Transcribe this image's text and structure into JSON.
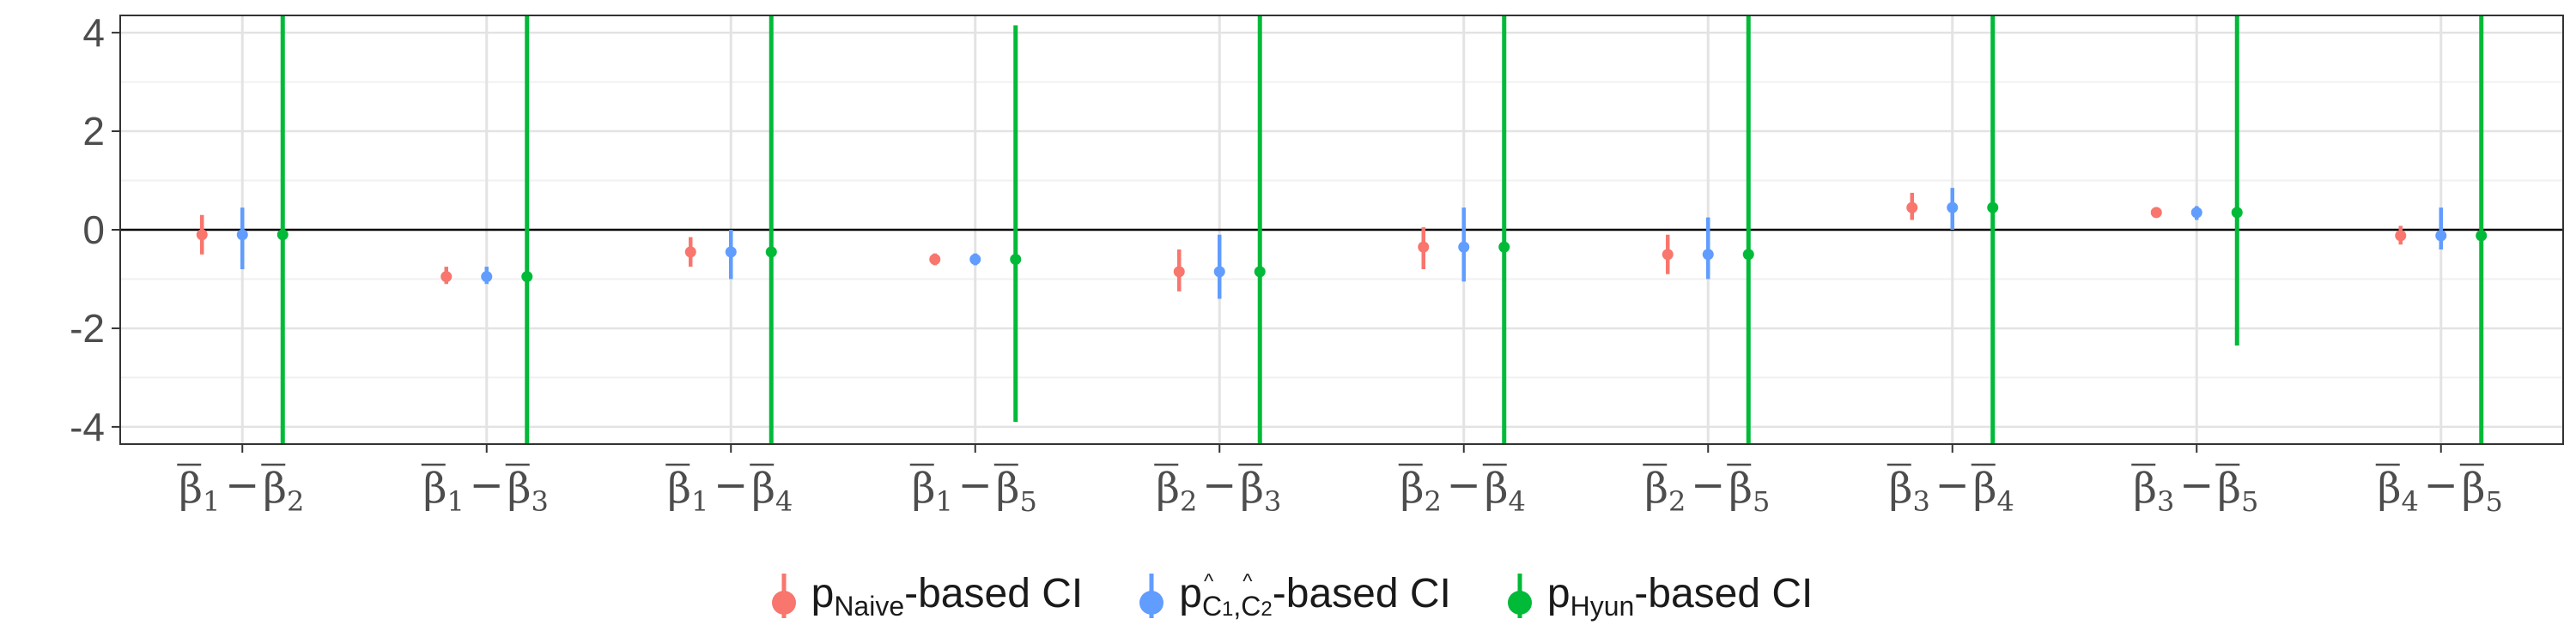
{
  "chart_data": {
    "type": "errorbar",
    "y_ticks": [
      "-4",
      "-2",
      "0",
      "2",
      "4"
    ],
    "ylim": [
      -4.35,
      4.35
    ],
    "hline": 0,
    "grid": true,
    "legend_position": "bottom",
    "categories": [
      {
        "base1": "β",
        "sub1": "1",
        "base2": "β",
        "sub2": "2"
      },
      {
        "base1": "β",
        "sub1": "1",
        "base2": "β",
        "sub2": "3"
      },
      {
        "base1": "β",
        "sub1": "1",
        "base2": "β",
        "sub2": "4"
      },
      {
        "base1": "β",
        "sub1": "1",
        "base2": "β",
        "sub2": "5"
      },
      {
        "base1": "β",
        "sub1": "2",
        "base2": "β",
        "sub2": "3"
      },
      {
        "base1": "β",
        "sub1": "2",
        "base2": "β",
        "sub2": "4"
      },
      {
        "base1": "β",
        "sub1": "2",
        "base2": "β",
        "sub2": "5"
      },
      {
        "base1": "β",
        "sub1": "3",
        "base2": "β",
        "sub2": "4"
      },
      {
        "base1": "β",
        "sub1": "3",
        "base2": "β",
        "sub2": "5"
      },
      {
        "base1": "β",
        "sub1": "4",
        "base2": "β",
        "sub2": "5"
      }
    ],
    "series": [
      {
        "color": "#F8766D",
        "points": [
          {
            "y": -0.1,
            "low": -0.5,
            "high": 0.3
          },
          {
            "y": -0.95,
            "low": -1.1,
            "high": -0.75
          },
          {
            "y": -0.45,
            "low": -0.75,
            "high": -0.15
          },
          {
            "y": -0.6,
            "low": -0.72,
            "high": -0.48
          },
          {
            "y": -0.85,
            "low": -1.25,
            "high": -0.4
          },
          {
            "y": -0.35,
            "low": -0.8,
            "high": 0.05
          },
          {
            "y": -0.5,
            "low": -0.9,
            "high": -0.1
          },
          {
            "y": 0.45,
            "low": 0.2,
            "high": 0.75
          },
          {
            "y": 0.35,
            "low": 0.25,
            "high": 0.45
          },
          {
            "y": -0.12,
            "low": -0.3,
            "high": 0.08
          }
        ]
      },
      {
        "color": "#619CFF",
        "points": [
          {
            "y": -0.1,
            "low": -0.8,
            "high": 0.45
          },
          {
            "y": -0.95,
            "low": -1.1,
            "high": -0.75
          },
          {
            "y": -0.45,
            "low": -1.0,
            "high": 0.0
          },
          {
            "y": -0.6,
            "low": -0.72,
            "high": -0.48
          },
          {
            "y": -0.85,
            "low": -1.4,
            "high": -0.1
          },
          {
            "y": -0.35,
            "low": -1.05,
            "high": 0.45
          },
          {
            "y": -0.5,
            "low": -1.0,
            "high": 0.25
          },
          {
            "y": 0.45,
            "low": 0.0,
            "high": 0.85
          },
          {
            "y": 0.35,
            "low": 0.2,
            "high": 0.48
          },
          {
            "y": -0.12,
            "low": -0.4,
            "high": 0.45
          }
        ]
      },
      {
        "color": "#00BA38",
        "points": [
          {
            "y": -0.1,
            "low": -4.5,
            "high": 4.5
          },
          {
            "y": -0.95,
            "low": -4.5,
            "high": 4.5
          },
          {
            "y": -0.45,
            "low": -4.5,
            "high": 4.5
          },
          {
            "y": -0.6,
            "low": -3.9,
            "high": 4.15
          },
          {
            "y": -0.85,
            "low": -4.5,
            "high": 4.5
          },
          {
            "y": -0.35,
            "low": -4.5,
            "high": 4.5
          },
          {
            "y": -0.5,
            "low": -4.5,
            "high": 4.5
          },
          {
            "y": 0.45,
            "low": -4.5,
            "high": 4.5
          },
          {
            "y": 0.35,
            "low": -2.35,
            "high": 4.5
          },
          {
            "y": -0.12,
            "low": -4.5,
            "high": 4.5
          }
        ]
      }
    ],
    "legend": [
      {
        "color": "#F8766D",
        "pre": "p",
        "sub": "Naive",
        "post": "-based CI"
      },
      {
        "color": "#619CFF",
        "pre": "p",
        "sub_c1": "C",
        "sub_1": "1",
        "sub_comma": ",",
        "sub_c2": "C",
        "sub_2": "2",
        "post": "-based CI"
      },
      {
        "color": "#00BA38",
        "pre": "p",
        "sub": "Hyun",
        "post": "-based CI"
      }
    ]
  }
}
